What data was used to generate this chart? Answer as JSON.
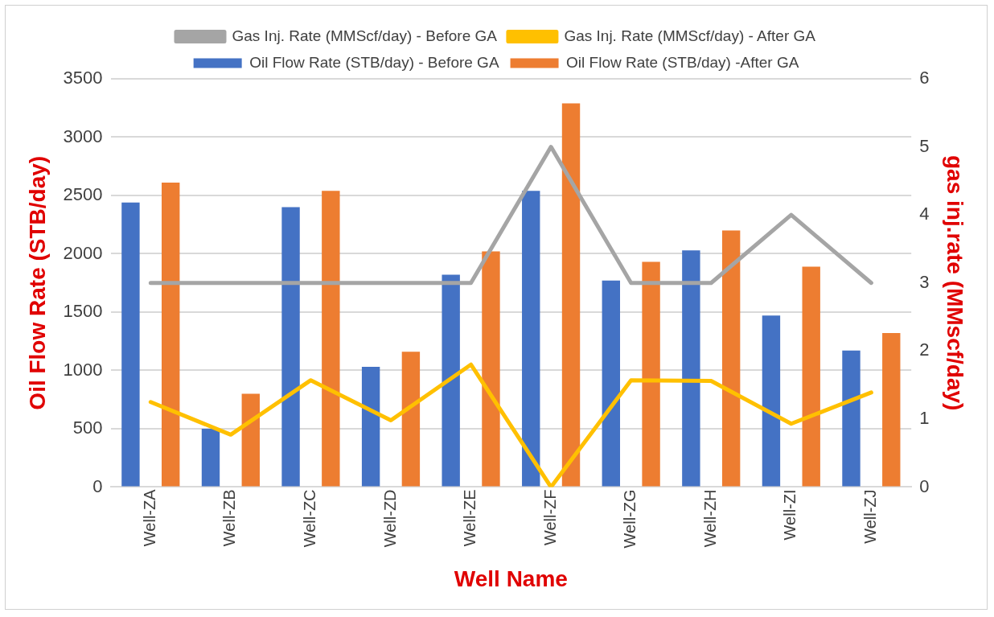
{
  "chart_data": {
    "type": "bar",
    "xlabel": "Well Name",
    "ylabel": "Oil Flow Rate (STB/day)",
    "y2label": "gas inj.rate (MMscf/day)",
    "categories": [
      "Well-ZA",
      "Well-ZB",
      "Well-ZC",
      "Well-ZD",
      "Well-ZE",
      "Well-ZF",
      "Well-ZG",
      "Well-ZH",
      "Well-ZI",
      "Well-ZJ"
    ],
    "series": [
      {
        "name": "Oil Flow Rate (STB/day) - Before GA",
        "color": "#4472c4",
        "values": [
          2440,
          500,
          2400,
          1030,
          1820,
          2540,
          1770,
          2030,
          1470,
          1170
        ]
      },
      {
        "name": "Oil Flow Rate (STB/day) -After GA",
        "color": "#ed7d31",
        "values": [
          2610,
          800,
          2540,
          1160,
          2020,
          3290,
          1930,
          2200,
          1890,
          1320
        ]
      },
      {
        "name": "Gas Inj. Rate (MMScf/day) - Before GA",
        "type": "line",
        "axis": "y2",
        "color": "#a5a5a5",
        "values": [
          3,
          3,
          3,
          3,
          3,
          5,
          3,
          3,
          4,
          3
        ]
      },
      {
        "name": "Gas Inj. Rate (MMScf/day) - After GA",
        "type": "line",
        "axis": "y2",
        "color": "#ffc000",
        "values": [
          1.25,
          0.77,
          1.57,
          0.98,
          1.8,
          0,
          1.57,
          1.56,
          0.93,
          1.39
        ]
      }
    ],
    "ylim": [
      0,
      3500
    ],
    "yticks": [
      0,
      500,
      1000,
      1500,
      2000,
      2500,
      3000,
      3500
    ],
    "y2lim": [
      0,
      6
    ],
    "y2ticks": [
      0,
      1,
      2,
      3,
      4,
      5,
      6
    ],
    "grid": "y",
    "legend": "top",
    "marker": "none",
    "line_style": "solid"
  }
}
